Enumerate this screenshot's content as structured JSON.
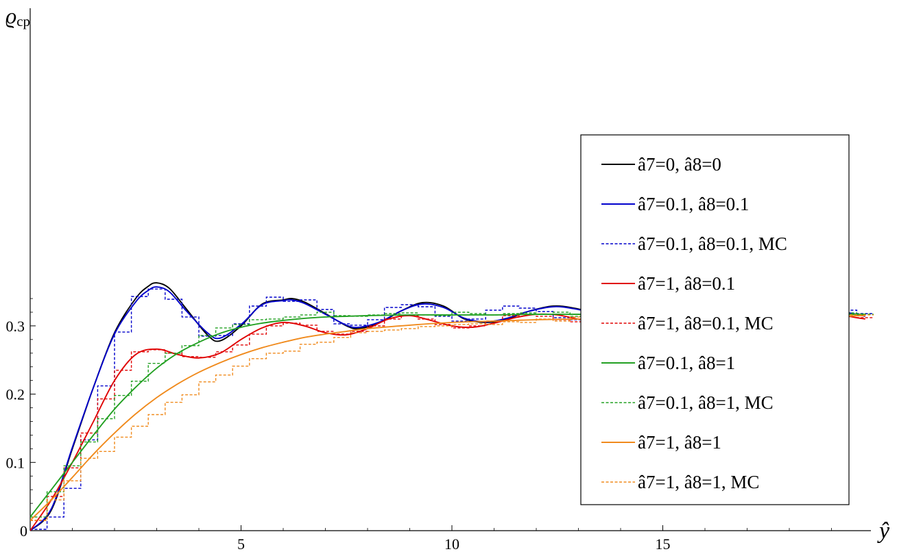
{
  "chart_data": {
    "type": "line",
    "xlabel": "ŷ",
    "ylabel": "ϱ",
    "ylabel_sub": "cp",
    "xlim": [
      0,
      19.8
    ],
    "ylim": [
      0,
      0.365
    ],
    "x_ticks": [
      5,
      10,
      15
    ],
    "y_ticks": [
      0.1,
      0.2,
      0.3
    ],
    "origin_label": "0",
    "tick_text": {
      "x": [
        "5",
        "10",
        "15"
      ],
      "y": [
        "0.1",
        "0.2",
        "0.3"
      ]
    },
    "grid": false,
    "legend_position": "right",
    "series": [
      {
        "name": "â7=0, â8=0",
        "color": "#000000",
        "style": "solid",
        "kind": "curve",
        "x": [
          0,
          0.5,
          1,
          1.5,
          2,
          2.5,
          2.8,
          3,
          3.3,
          3.7,
          4.2,
          4.5,
          5,
          5.5,
          6,
          6.2,
          6.5,
          7,
          7.5,
          7.8,
          8.3,
          8.8,
          9.3,
          9.8,
          10.3,
          10.8,
          11.3,
          11.8,
          12.4,
          12.9,
          13.4,
          13.9,
          14.4,
          14.9,
          15.5,
          16,
          16.5,
          17,
          17.5,
          18,
          18.6,
          19,
          19.5,
          19.8
        ],
        "y": [
          0,
          0.03,
          0.12,
          0.21,
          0.29,
          0.34,
          0.358,
          0.363,
          0.355,
          0.325,
          0.287,
          0.278,
          0.3,
          0.332,
          0.338,
          0.34,
          0.335,
          0.318,
          0.3,
          0.296,
          0.305,
          0.322,
          0.334,
          0.329,
          0.31,
          0.305,
          0.31,
          0.321,
          0.329,
          0.326,
          0.318,
          0.309,
          0.309,
          0.316,
          0.326,
          0.322,
          0.315,
          0.309,
          0.311,
          0.317,
          0.325,
          0.324,
          0.318,
          0.315
        ]
      },
      {
        "name": "â7=0.1, â8=0.1",
        "color": "#0000cc",
        "style": "solid",
        "kind": "curve",
        "x": [
          0,
          0.5,
          1,
          1.5,
          2,
          2.5,
          2.8,
          3,
          3.3,
          3.7,
          4.2,
          4.5,
          5,
          5.5,
          6,
          6.2,
          6.5,
          7,
          7.5,
          7.8,
          8.3,
          8.8,
          9.3,
          9.8,
          10.3,
          10.8,
          11.3,
          11.8,
          12.4,
          12.9,
          13.4,
          13.9,
          14.4,
          14.9,
          15.5,
          16,
          16.5,
          17,
          17.5,
          18,
          18.6,
          19,
          19.5,
          19.8
        ],
        "y": [
          0,
          0.032,
          0.122,
          0.21,
          0.288,
          0.335,
          0.352,
          0.357,
          0.35,
          0.322,
          0.29,
          0.282,
          0.302,
          0.331,
          0.337,
          0.338,
          0.333,
          0.317,
          0.301,
          0.298,
          0.306,
          0.322,
          0.332,
          0.327,
          0.311,
          0.306,
          0.311,
          0.321,
          0.328,
          0.325,
          0.318,
          0.31,
          0.31,
          0.316,
          0.325,
          0.321,
          0.315,
          0.31,
          0.312,
          0.317,
          0.324,
          0.323,
          0.318,
          0.314
        ]
      },
      {
        "name": "â7=0.1, â8=0.1, MC",
        "color": "#0000cc",
        "style": "dashed",
        "kind": "step",
        "bin": 0.4,
        "y": [
          0.002,
          0.02,
          0.062,
          0.133,
          0.212,
          0.291,
          0.343,
          0.354,
          0.339,
          0.313,
          0.285,
          0.286,
          0.303,
          0.329,
          0.342,
          0.336,
          0.338,
          0.324,
          0.303,
          0.301,
          0.309,
          0.327,
          0.331,
          0.328,
          0.314,
          0.307,
          0.31,
          0.323,
          0.329,
          0.326,
          0.321,
          0.312,
          0.309,
          0.314,
          0.325,
          0.325,
          0.317,
          0.311,
          0.313,
          0.317,
          0.326,
          0.322,
          0.321,
          0.316,
          0.312,
          0.312,
          0.318,
          0.324,
          0.323,
          0.318
        ]
      },
      {
        "name": "â7=1, â8=0.1",
        "color": "#e00000",
        "style": "solid",
        "kind": "curve",
        "x": [
          0,
          0.5,
          1,
          1.5,
          2,
          2.5,
          3,
          3.5,
          4,
          4.5,
          5,
          5.5,
          6,
          6.5,
          7,
          7.5,
          8,
          8.5,
          9,
          9.5,
          10,
          10.5,
          11,
          11.5,
          12,
          12.5,
          13,
          13.5,
          14,
          14.5,
          15,
          15.5,
          16,
          16.5,
          17,
          17.5,
          18,
          18.5,
          19,
          19.5,
          19.8
        ],
        "y": [
          0,
          0.045,
          0.1,
          0.16,
          0.22,
          0.258,
          0.266,
          0.258,
          0.253,
          0.26,
          0.28,
          0.297,
          0.305,
          0.3,
          0.29,
          0.287,
          0.296,
          0.31,
          0.315,
          0.308,
          0.3,
          0.298,
          0.304,
          0.312,
          0.317,
          0.316,
          0.31,
          0.306,
          0.307,
          0.313,
          0.318,
          0.32,
          0.316,
          0.311,
          0.308,
          0.311,
          0.317,
          0.32,
          0.318,
          0.313,
          0.31
        ]
      },
      {
        "name": "â7=1, â8=0.1, MC",
        "color": "#e00000",
        "style": "dashed",
        "kind": "step",
        "bin": 0.4,
        "y": [
          0.015,
          0.05,
          0.092,
          0.143,
          0.193,
          0.235,
          0.262,
          0.265,
          0.26,
          0.255,
          0.254,
          0.262,
          0.272,
          0.288,
          0.3,
          0.304,
          0.301,
          0.292,
          0.288,
          0.292,
          0.3,
          0.31,
          0.315,
          0.31,
          0.302,
          0.297,
          0.3,
          0.307,
          0.315,
          0.317,
          0.314,
          0.309,
          0.306,
          0.308,
          0.314,
          0.319,
          0.319,
          0.314,
          0.309,
          0.309,
          0.314,
          0.319,
          0.318,
          0.312,
          0.31,
          0.313,
          0.318,
          0.319,
          0.316,
          0.312
        ]
      },
      {
        "name": "â7=0.1, â8=1",
        "color": "#22a022",
        "style": "solid",
        "kind": "curve",
        "x": [
          0,
          0.5,
          1,
          1.5,
          2,
          2.5,
          3,
          3.5,
          4,
          4.5,
          5,
          5.5,
          6,
          6.5,
          7,
          7.5,
          8,
          9,
          10,
          11,
          12,
          13,
          14,
          15,
          16,
          17,
          18,
          19,
          19.8
        ],
        "y": [
          0.02,
          0.06,
          0.1,
          0.14,
          0.178,
          0.21,
          0.238,
          0.26,
          0.276,
          0.289,
          0.298,
          0.304,
          0.308,
          0.311,
          0.313,
          0.314,
          0.315,
          0.316,
          0.316,
          0.316,
          0.317,
          0.317,
          0.317,
          0.317,
          0.317,
          0.317,
          0.317,
          0.317,
          0.317
        ]
      },
      {
        "name": "â7=0.1, â8=1, MC",
        "color": "#22a022",
        "style": "dashed",
        "kind": "step",
        "bin": 0.4,
        "y": [
          0.02,
          0.057,
          0.095,
          0.13,
          0.164,
          0.198,
          0.219,
          0.245,
          0.26,
          0.271,
          0.286,
          0.297,
          0.302,
          0.309,
          0.31,
          0.313,
          0.316,
          0.32,
          0.315,
          0.314,
          0.316,
          0.318,
          0.319,
          0.316,
          0.315,
          0.32,
          0.318,
          0.316,
          0.318,
          0.319,
          0.317,
          0.32,
          0.314,
          0.318,
          0.316,
          0.318,
          0.32,
          0.316,
          0.319,
          0.317,
          0.318,
          0.316,
          0.31,
          0.322,
          0.316,
          0.319,
          0.318,
          0.32,
          0.319,
          0.317
        ]
      },
      {
        "name": "â7=1, â8=1",
        "color": "#f08a1c",
        "style": "solid",
        "kind": "curve",
        "x": [
          0,
          0.5,
          1,
          1.5,
          2,
          2.5,
          3,
          3.5,
          4,
          4.5,
          5,
          5.5,
          6,
          6.5,
          7,
          7.5,
          8,
          9,
          10,
          11,
          12,
          13,
          14,
          15,
          16,
          17,
          18,
          19,
          19.8
        ],
        "y": [
          0.015,
          0.045,
          0.078,
          0.112,
          0.143,
          0.171,
          0.195,
          0.215,
          0.232,
          0.246,
          0.258,
          0.268,
          0.276,
          0.283,
          0.288,
          0.292,
          0.296,
          0.301,
          0.305,
          0.307,
          0.309,
          0.31,
          0.311,
          0.312,
          0.313,
          0.313,
          0.314,
          0.314,
          0.315
        ]
      },
      {
        "name": "â7=1, â8=1, MC",
        "color": "#f08a1c",
        "style": "dashed",
        "kind": "step",
        "bin": 0.4,
        "y": [
          0.015,
          0.045,
          0.073,
          0.106,
          0.116,
          0.137,
          0.153,
          0.17,
          0.188,
          0.199,
          0.218,
          0.228,
          0.241,
          0.252,
          0.26,
          0.263,
          0.273,
          0.276,
          0.283,
          0.29,
          0.292,
          0.294,
          0.296,
          0.299,
          0.3,
          0.302,
          0.303,
          0.302,
          0.306,
          0.305,
          0.31,
          0.307,
          0.313,
          0.309,
          0.313,
          0.31,
          0.313,
          0.312,
          0.314,
          0.312,
          0.317,
          0.314,
          0.316,
          0.312,
          0.316,
          0.314,
          0.317,
          0.315,
          0.316,
          0.316
        ]
      }
    ]
  }
}
